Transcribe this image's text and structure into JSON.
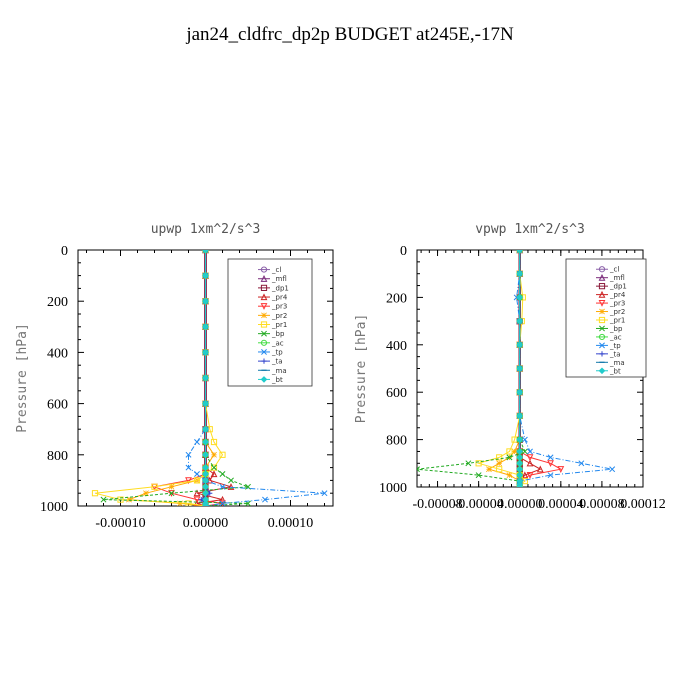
{
  "figure": {
    "title": "jan24_cldfrc_dp2p  BUDGET at245E,-17N"
  },
  "chart_data": [
    {
      "type": "line",
      "title": "upwp   1xm^2/s^3",
      "ylabel": "Pressure [hPa]",
      "xlabel": "",
      "xlim": [
        -0.00015,
        0.00015
      ],
      "ylim": [
        1000,
        0
      ],
      "xticks": [
        -0.0001,
        0.0,
        0.0001
      ],
      "xtick_labels": [
        "-0.00010",
        "0.00000",
        "0.00010"
      ],
      "yticks": [
        0,
        200,
        400,
        600,
        800,
        1000
      ],
      "ytick_labels": [
        "0",
        "200",
        "400",
        "600",
        "800",
        "1000"
      ],
      "legend_position": "top-right",
      "y": [
        0,
        100,
        200,
        300,
        400,
        500,
        600,
        700,
        750,
        800,
        850,
        875,
        900,
        925,
        950,
        975,
        990,
        1000
      ],
      "series": [
        {
          "name": "_cl",
          "color": "#8a5fa8",
          "values": [
            0,
            0,
            0,
            0,
            0,
            0,
            0,
            0,
            0,
            0,
            0,
            0,
            0,
            0,
            0,
            0,
            0,
            0
          ]
        },
        {
          "name": "_mfl",
          "color": "#7a2a7a",
          "values": [
            0,
            0,
            0,
            0,
            0,
            0,
            0,
            0,
            0,
            0,
            0,
            0,
            0,
            0,
            0,
            0,
            0,
            0
          ]
        },
        {
          "name": "_dp1",
          "color": "#8b1a3a",
          "values": [
            0,
            0,
            0,
            0,
            0,
            0,
            0,
            0,
            0,
            0,
            0,
            0,
            0,
            0,
            0,
            0,
            0,
            0
          ]
        },
        {
          "name": "_pr4",
          "color": "#cc2222",
          "values": [
            0,
            0,
            0,
            0,
            0,
            0,
            0,
            0,
            0,
            0,
            0,
            1e-05,
            5e-06,
            3e-05,
            -1e-05,
            2e-05,
            -1e-05,
            0
          ]
        },
        {
          "name": "_pr3",
          "color": "#ff3333",
          "values": [
            0,
            0,
            0,
            0,
            0,
            0,
            0,
            0,
            0,
            0,
            0,
            0,
            -2e-05,
            -6e-05,
            -4e-05,
            -1e-05,
            2e-05,
            0
          ]
        },
        {
          "name": "_pr2",
          "color": "#ffaa00",
          "values": [
            0,
            0,
            0,
            0,
            0,
            0,
            0,
            0,
            0,
            1e-05,
            0,
            0,
            -1e-05,
            -4e-05,
            -7e-05,
            -9e-05,
            -3e-05,
            0
          ]
        },
        {
          "name": "_pr1",
          "color": "#ffdd22",
          "values": [
            0,
            0,
            0,
            0,
            0,
            0,
            0,
            5e-06,
            1e-05,
            2e-05,
            1e-05,
            0,
            -1e-05,
            -6e-05,
            -0.00013,
            -0.0001,
            -2e-05,
            0
          ]
        },
        {
          "name": "_bp",
          "color": "#22aa22",
          "values": [
            0,
            0,
            0,
            0,
            0,
            0,
            0,
            0,
            0,
            0,
            1e-05,
            2e-05,
            3e-05,
            5e-05,
            -4e-05,
            -0.00012,
            5e-05,
            0
          ]
        },
        {
          "name": "_ac",
          "color": "#44dd44",
          "values": [
            0,
            0,
            0,
            0,
            0,
            0,
            0,
            0,
            0,
            0,
            0,
            0,
            0,
            0,
            0,
            0,
            0,
            0
          ]
        },
        {
          "name": "_tp",
          "color": "#2288ee",
          "values": [
            0,
            0,
            0,
            0,
            0,
            0,
            0,
            0,
            -1e-05,
            -2e-05,
            -2e-05,
            -1e-05,
            0,
            2e-05,
            0.00014,
            7e-05,
            2e-05,
            0
          ]
        },
        {
          "name": "_ta",
          "color": "#3344cc",
          "values": [
            0,
            0,
            0,
            0,
            0,
            0,
            0,
            0,
            0,
            0,
            0,
            0,
            0,
            0,
            5e-06,
            -5e-06,
            0,
            0
          ]
        },
        {
          "name": "_ma",
          "color": "#1177aa",
          "values": [
            0,
            0,
            0,
            0,
            0,
            0,
            0,
            0,
            0,
            0,
            0,
            0,
            0,
            0,
            0,
            0,
            0,
            0
          ]
        },
        {
          "name": "_bt",
          "color": "#22cccc",
          "values": [
            0,
            0,
            0,
            0,
            0,
            0,
            0,
            0,
            0,
            0,
            0,
            0,
            0,
            0,
            0,
            0,
            0,
            0
          ]
        }
      ]
    },
    {
      "type": "line",
      "title": "vpwp   1xm^2/s^3",
      "ylabel": "Pressure [hPa]",
      "xlabel": "",
      "xlim": [
        -0.0001,
        0.00012
      ],
      "ylim": [
        1000,
        0
      ],
      "xticks": [
        -8e-05,
        -4e-05,
        0.0,
        4e-05,
        8e-05,
        0.00012
      ],
      "xtick_labels": [
        "-0.00008",
        "-0.00004",
        "0.00000",
        "0.00004",
        "0.00008",
        "0.00012"
      ],
      "yticks": [
        0,
        200,
        400,
        600,
        800,
        1000
      ],
      "ytick_labels": [
        "0",
        "200",
        "400",
        "600",
        "800",
        "1000"
      ],
      "legend_position": "top-right",
      "y": [
        0,
        100,
        200,
        300,
        400,
        500,
        600,
        700,
        800,
        850,
        875,
        900,
        925,
        950,
        975,
        990,
        1000
      ],
      "series": [
        {
          "name": "_cl",
          "color": "#8a5fa8",
          "values": [
            0,
            0,
            0,
            0,
            0,
            0,
            0,
            0,
            0,
            0,
            0,
            0,
            0,
            0,
            0,
            0,
            0
          ]
        },
        {
          "name": "_mfl",
          "color": "#7a2a7a",
          "values": [
            0,
            0,
            0,
            0,
            0,
            0,
            0,
            0,
            0,
            0,
            0,
            0,
            0,
            0,
            0,
            0,
            0
          ]
        },
        {
          "name": "_dp1",
          "color": "#8b1a3a",
          "values": [
            0,
            0,
            0,
            0,
            0,
            0,
            0,
            0,
            0,
            0,
            0,
            0,
            0,
            0,
            0,
            0,
            0
          ]
        },
        {
          "name": "_pr4",
          "color": "#cc2222",
          "values": [
            0,
            0,
            0,
            0,
            0,
            0,
            0,
            0,
            0,
            0,
            0,
            1e-05,
            2e-05,
            5e-06,
            0,
            0,
            0
          ]
        },
        {
          "name": "_pr3",
          "color": "#ff3333",
          "values": [
            0,
            0,
            0,
            0,
            0,
            0,
            0,
            0,
            0,
            0,
            1e-05,
            3e-05,
            4e-05,
            1e-05,
            0,
            0,
            0
          ]
        },
        {
          "name": "_pr2",
          "color": "#ffaa00",
          "values": [
            0,
            0,
            0,
            0,
            0,
            0,
            0,
            0,
            0,
            -5e-06,
            -1e-05,
            -2e-05,
            -3e-05,
            -1e-05,
            0,
            0,
            0
          ]
        },
        {
          "name": "_pr1",
          "color": "#ffdd22",
          "values": [
            0,
            0,
            3e-06,
            2e-06,
            0,
            0,
            0,
            0,
            -5e-06,
            -1e-05,
            -2e-05,
            -4e-05,
            -2e-05,
            0,
            5e-06,
            0,
            0
          ]
        },
        {
          "name": "_bp",
          "color": "#22aa22",
          "values": [
            0,
            0,
            0,
            0,
            0,
            0,
            0,
            0,
            0,
            5e-06,
            -1e-05,
            -5e-05,
            -0.0001,
            -4e-05,
            0,
            0,
            0
          ]
        },
        {
          "name": "_ac",
          "color": "#44dd44",
          "values": [
            0,
            0,
            0,
            0,
            0,
            0,
            0,
            0,
            0,
            0,
            0,
            0,
            0,
            0,
            0,
            0,
            0
          ]
        },
        {
          "name": "_tp",
          "color": "#2288ee",
          "values": [
            0,
            0,
            -3e-06,
            0,
            0,
            0,
            0,
            0,
            5e-06,
            1e-05,
            3e-05,
            6e-05,
            9e-05,
            3e-05,
            0,
            0,
            0
          ]
        },
        {
          "name": "_ta",
          "color": "#3344cc",
          "values": [
            0,
            0,
            0,
            0,
            0,
            0,
            0,
            0,
            0,
            0,
            0,
            0,
            0,
            0,
            0,
            0,
            0
          ]
        },
        {
          "name": "_ma",
          "color": "#1177aa",
          "values": [
            0,
            0,
            0,
            0,
            0,
            0,
            0,
            0,
            0,
            0,
            0,
            0,
            0,
            0,
            0,
            0,
            0
          ]
        },
        {
          "name": "_bt",
          "color": "#22cccc",
          "values": [
            0,
            0,
            0,
            0,
            0,
            0,
            0,
            0,
            0,
            0,
            0,
            0,
            0,
            0,
            0,
            0,
            0
          ]
        }
      ]
    }
  ]
}
